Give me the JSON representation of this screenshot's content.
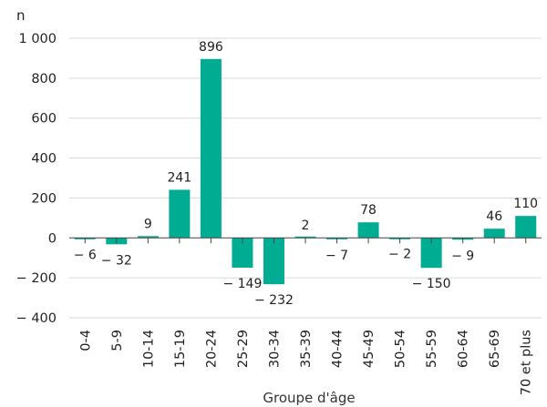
{
  "colors": {
    "bar": "#00ad92",
    "grid": "#d9d9d9",
    "zero_line": "#444444",
    "text": "#222222"
  },
  "chart_data": {
    "type": "bar",
    "title": "",
    "ylabel": "n",
    "xlabel": "Groupe d'âge",
    "ylim": [
      -400,
      1000
    ],
    "yticks": [
      -400,
      -200,
      0,
      200,
      400,
      600,
      800,
      1000
    ],
    "ytick_labels": [
      "− 400",
      "− 200",
      "0",
      "200",
      "400",
      "600",
      "800",
      "1 000"
    ],
    "grid": true,
    "categories": [
      "0-4",
      "5-9",
      "10-14",
      "15-19",
      "20-24",
      "25-29",
      "30-34",
      "35-39",
      "40-44",
      "45-49",
      "50-54",
      "55-59",
      "60-64",
      "65-69",
      "70 et plus"
    ],
    "values": [
      -6,
      -32,
      9,
      241,
      896,
      -149,
      -232,
      2,
      -7,
      78,
      -2,
      -150,
      -9,
      46,
      110
    ],
    "data_labels": [
      "− 6",
      "− 32",
      "9",
      "241",
      "896",
      "− 149",
      "− 232",
      "2",
      "− 7",
      "78",
      "− 2",
      "− 150",
      "− 9",
      "46",
      "110"
    ]
  }
}
